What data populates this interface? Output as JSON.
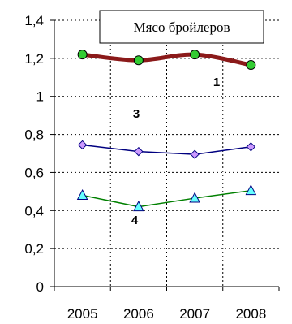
{
  "chart_data": {
    "type": "line",
    "title": "Мясо бройлеров",
    "categories": [
      "2005",
      "2006",
      "2007",
      "2008"
    ],
    "ylim": [
      0,
      1.4
    ],
    "yticks": [
      "0",
      "0,2",
      "0,4",
      "0,6",
      "0,8",
      "1",
      "1,2",
      "1,4"
    ],
    "grid": true,
    "series": [
      {
        "name": "1",
        "values": [
          1.22,
          1.19,
          1.22,
          1.165
        ],
        "color": "#8b1a1a",
        "marker": "circle",
        "marker_color": "#33cc33"
      },
      {
        "name": "3",
        "values": [
          0.745,
          0.71,
          0.695,
          0.735
        ],
        "color": "#000080",
        "marker": "diamond",
        "marker_color": "#cc99ff"
      },
      {
        "name": "4",
        "values": [
          0.48,
          0.42,
          0.465,
          0.505
        ],
        "color": "#008000",
        "marker": "triangle",
        "marker_color": "#66ffff"
      }
    ]
  }
}
